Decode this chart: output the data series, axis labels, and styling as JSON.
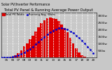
{
  "title": "Total PV Panel & Running Average Power Output",
  "subtitle": "Solar PV/Inverter Performance",
  "bg_color": "#c8c8c8",
  "plot_bg": "#c8c8c8",
  "bar_color": "#dd0000",
  "avg_color": "#0000cc",
  "ylim": [
    0,
    3200
  ],
  "ytick_values": [
    500,
    1000,
    1500,
    2000,
    2500,
    3000
  ],
  "ytick_labels": [
    "500w",
    "1000w",
    "1500w",
    "2000w",
    "2500w",
    "3000w"
  ],
  "hours": [
    4.0,
    4.5,
    5.0,
    5.5,
    6.0,
    6.5,
    7.0,
    7.5,
    8.0,
    8.5,
    9.0,
    9.5,
    10.0,
    10.5,
    11.0,
    11.5,
    12.0,
    12.5,
    13.0,
    13.5,
    14.0,
    14.5,
    15.0,
    15.5,
    16.0,
    16.5,
    17.0,
    17.5,
    18.0,
    18.5,
    19.0,
    19.5,
    20.0
  ],
  "power": [
    0,
    0,
    5,
    25,
    70,
    160,
    320,
    500,
    780,
    1020,
    1280,
    1560,
    1850,
    2150,
    2450,
    2660,
    2780,
    2830,
    2790,
    2730,
    2580,
    2370,
    2080,
    1780,
    1380,
    980,
    630,
    360,
    170,
    55,
    12,
    2,
    0
  ],
  "avg": [
    0,
    0,
    3,
    12,
    35,
    80,
    155,
    235,
    370,
    490,
    620,
    770,
    940,
    1110,
    1290,
    1470,
    1640,
    1800,
    1920,
    2020,
    2080,
    2100,
    2060,
    1980,
    1870,
    1730,
    1570,
    1390,
    1190,
    980,
    760,
    540,
    320
  ],
  "xlim": [
    4.0,
    20.5
  ],
  "xtick_positions": [
    5,
    6,
    7,
    8,
    9,
    10,
    11,
    12,
    13,
    14,
    15,
    16,
    17,
    18,
    19,
    20
  ],
  "xtick_labels": [
    "05",
    "06",
    "07",
    "08",
    "09",
    "10",
    "11",
    "12",
    "13",
    "14",
    "15",
    "16",
    "17",
    "18",
    "19",
    "20"
  ],
  "grid_positions": [
    5,
    6,
    7,
    8,
    9,
    10,
    11,
    12,
    13,
    14,
    15,
    16,
    17,
    18,
    19,
    20
  ],
  "bar_width": 0.45,
  "title_fontsize": 3.8,
  "tick_fontsize": 3.0,
  "legend_fontsize": 2.8,
  "legend_pv": "Total PV Watts",
  "legend_avg": "Running Avg. Watts"
}
